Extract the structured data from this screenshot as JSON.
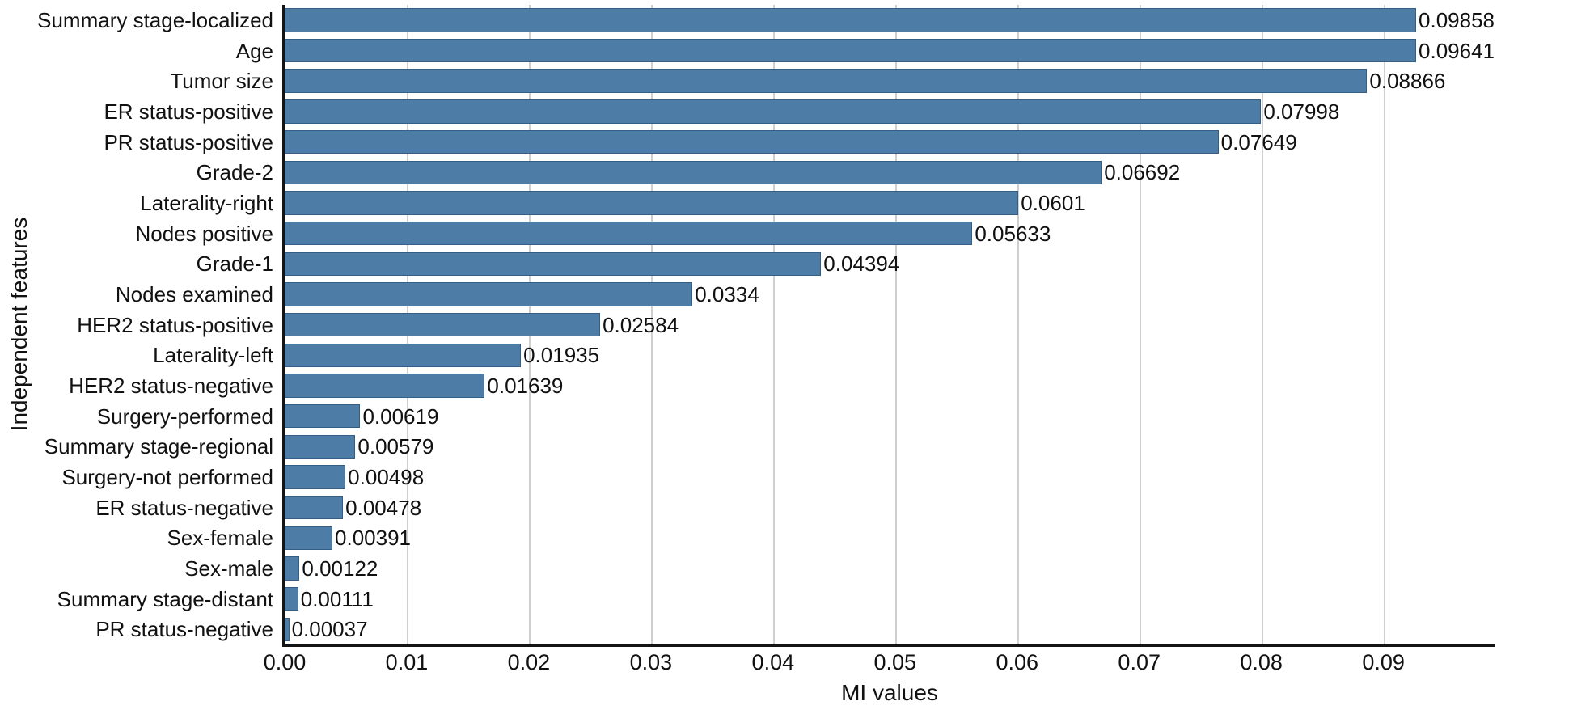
{
  "figure": {
    "background_color": "#ffffff",
    "spine_color": "#141414",
    "gridline_color": "#cfcfcf"
  },
  "chart_data": {
    "type": "bar",
    "orientation": "horizontal",
    "title": "",
    "xlabel": "MI values",
    "ylabel": "Independent features",
    "categories": [
      "Summary stage-localized",
      "Age",
      "Tumor size",
      "ER status-positive",
      "PR status-positive",
      "Grade-2",
      "Laterality-right",
      "Nodes positive",
      "Grade-1",
      "Nodes examined",
      "HER2 status-positive",
      "Laterality-left",
      "HER2 status-negative",
      "Surgery-performed",
      "Summary stage-regional",
      "Surgery-not performed",
      "ER status-negative",
      "Sex-female",
      "Sex-male",
      "Summary stage-distant",
      "PR status-negative"
    ],
    "values": [
      0.09858,
      0.09641,
      0.08866,
      0.07998,
      0.07649,
      0.06692,
      0.0601,
      0.05633,
      0.04394,
      0.0334,
      0.02584,
      0.01935,
      0.01639,
      0.00619,
      0.00579,
      0.00498,
      0.00478,
      0.00391,
      0.00122,
      0.00111,
      0.00037
    ],
    "value_labels": [
      "0.09858",
      "0.09641",
      "0.08866",
      "0.07998",
      "0.07649",
      "0.06692",
      "0.0601",
      "0.05633",
      "0.04394",
      "0.0334",
      "0.02584",
      "0.01935",
      "0.01639",
      "0.00619",
      "0.00579",
      "0.00498",
      "0.00478",
      "0.00391",
      "0.00122",
      "0.00111",
      "0.00037"
    ],
    "x_tick_values": [
      0.0,
      0.01,
      0.02,
      0.03,
      0.04,
      0.05,
      0.06,
      0.07,
      0.08,
      0.09
    ],
    "x_tick_labels": [
      "0.00",
      "0.01",
      "0.02",
      "0.03",
      "0.04",
      "0.05",
      "0.06",
      "0.07",
      "0.08",
      "0.09"
    ],
    "xlim": [
      0,
      0.0991
    ],
    "grid": "vertical",
    "legend": "none",
    "bar_color": "#4d7ca6"
  }
}
